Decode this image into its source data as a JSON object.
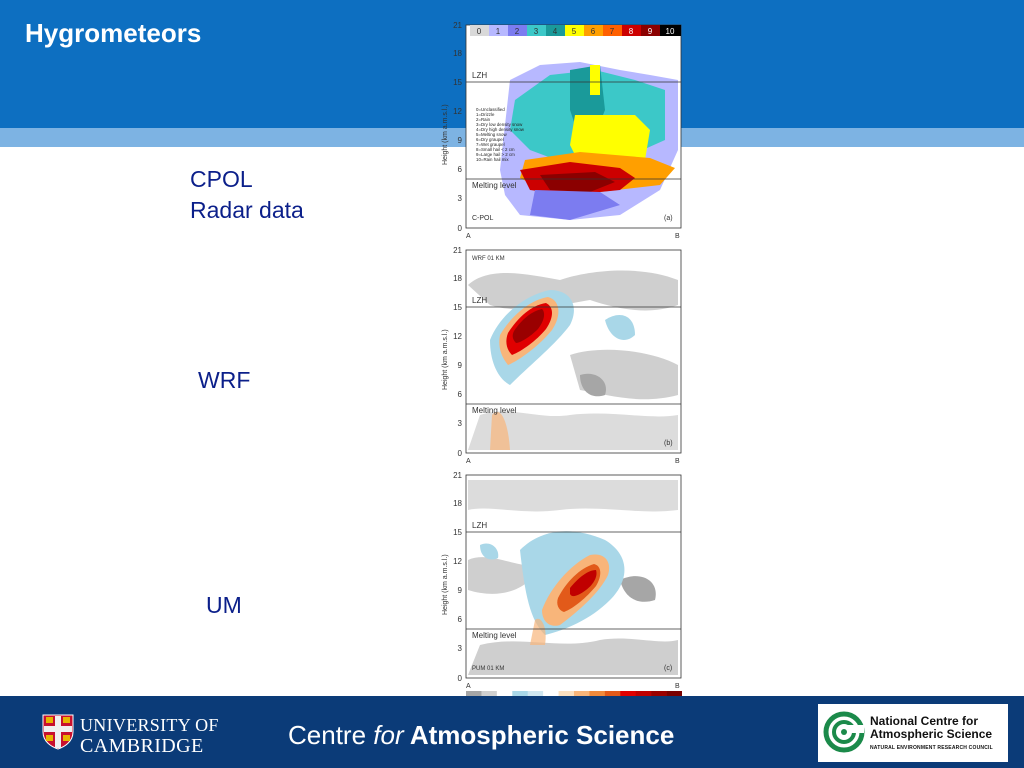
{
  "slide": {
    "title": "Hygrometeors"
  },
  "captions": {
    "cpol_line1": "CPOL",
    "cpol_line2": "Radar data",
    "wrf": "WRF",
    "um": "UM"
  },
  "panels": {
    "height_axis_label": "Height (km a.m.s.l.)",
    "y_ticks": [
      "0",
      "3",
      "6",
      "9",
      "12",
      "15",
      "18",
      "21"
    ],
    "x_left": "A",
    "x_right": "B",
    "lzh_label": "LZH",
    "melting_label": "Melting level",
    "cpol": {
      "tag": "(a)",
      "source_label": "C-POL",
      "class_scale": [
        "0",
        "1",
        "2",
        "3",
        "4",
        "5",
        "6",
        "7",
        "8",
        "9",
        "10"
      ],
      "class_colors": [
        "#d9d9d9",
        "#b7b8ff",
        "#7c7cf0",
        "#3cc8c8",
        "#1a9a9a",
        "#ffff00",
        "#ff9f00",
        "#ff6000",
        "#cc0000",
        "#8b0000",
        "#000000"
      ],
      "legend": [
        "0=Unclassified",
        "1=Drizzle",
        "2=Rain",
        "3=Dry low density snow",
        "4=Dry high density snow",
        "5=Melting snow",
        "6=Dry graupel",
        "7=Wet graupel",
        "8=Small hail < 2 cm",
        "9=Large hail > 2 cm",
        "10=Rain hail mix"
      ]
    },
    "wrf": {
      "tag": "(b)",
      "model_label": "WRF 01 KM"
    },
    "um": {
      "tag": "(c)",
      "model_label": "PUM 01 KM"
    },
    "colorbar": [
      "#a6a6a6",
      "#cfcfcf",
      "#ffffff",
      "#a9d7e8",
      "#cfe6f0",
      "#ffffff",
      "#fbe0c0",
      "#f8b57a",
      "#f08a3c",
      "#e25a1a",
      "#e00000",
      "#c00000",
      "#9a0000",
      "#7a0000"
    ]
  },
  "footer": {
    "cambridge_line1": "UNIVERSITY OF",
    "cambridge_line2": "CAMBRIDGE",
    "centre_pre": "Centre ",
    "centre_em": "for",
    "centre_bold": " Atmospheric Science",
    "ncas_line1": "National Centre for",
    "ncas_line2": "Atmospheric Science",
    "ncas_line3": "NATURAL ENVIRONMENT RESEARCH COUNCIL"
  }
}
